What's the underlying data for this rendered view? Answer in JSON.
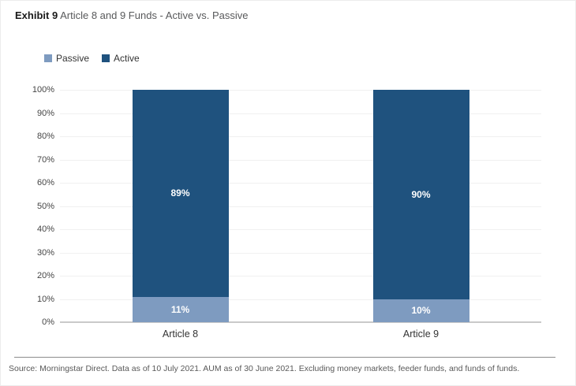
{
  "header": {
    "exhibit_label": "Exhibit 9",
    "title": "Article 8 and 9 Funds - Active vs. Passive"
  },
  "legend": [
    {
      "label": "Passive",
      "color": "#7e9bc0"
    },
    {
      "label": "Active",
      "color": "#1f527e"
    }
  ],
  "chart_data": {
    "type": "bar",
    "stacked": true,
    "title": "Article 8 and 9 Funds - Active vs. Passive",
    "categories": [
      "Article 8",
      "Article 9"
    ],
    "series": [
      {
        "name": "Passive",
        "color": "#7e9bc0",
        "values": [
          11,
          10
        ],
        "labels": [
          "11%",
          "10%"
        ]
      },
      {
        "name": "Active",
        "color": "#1f527e",
        "values": [
          89,
          90
        ],
        "labels": [
          "89%",
          "90%"
        ]
      }
    ],
    "xlabel": "",
    "ylabel": "",
    "ylim": [
      0,
      100
    ],
    "ytick_step": 10,
    "ytick_suffix": "%",
    "grid": true,
    "legend_position": "top-left"
  },
  "footer": {
    "source": "Source: Morningstar Direct. Data as of 10 July 2021. AUM as of 30 June 2021. Excluding money markets, feeder funds, and funds of funds."
  }
}
